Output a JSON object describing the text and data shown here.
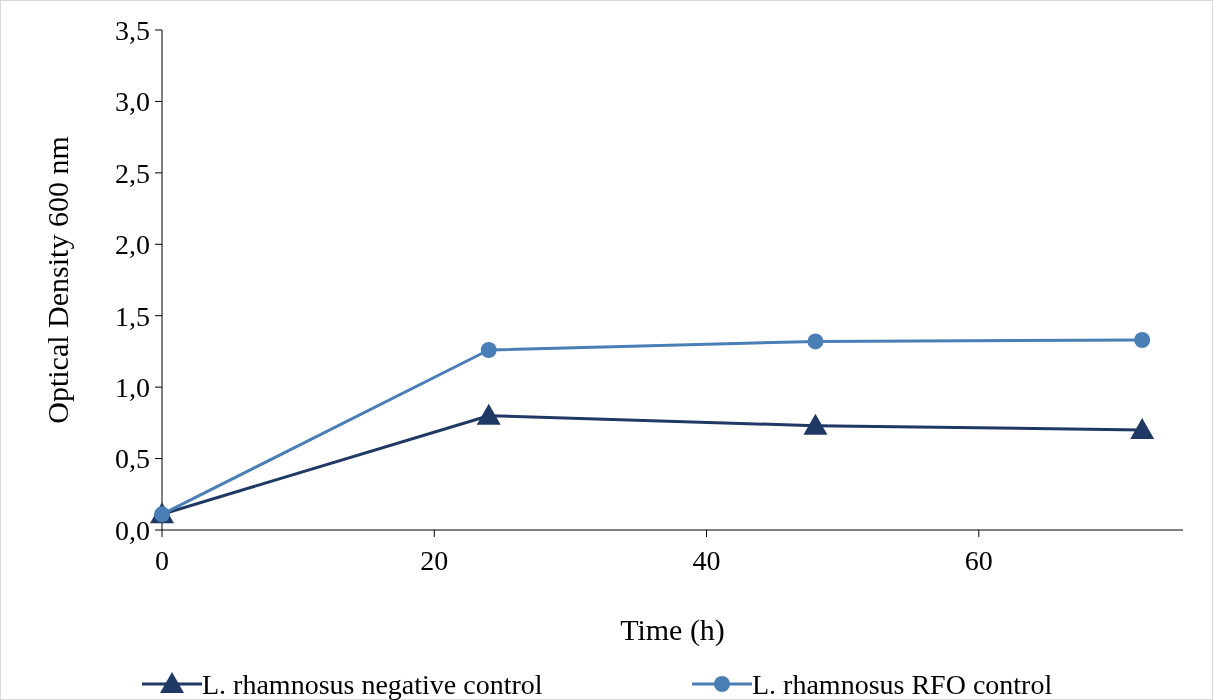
{
  "chart_data": {
    "type": "line",
    "xlabel": "Time (h)",
    "ylabel": "Optical Density 600 nm",
    "x": [
      0,
      24,
      48,
      72
    ],
    "series": [
      {
        "name": "L. rhamnosus negative control",
        "color": "#1f3864",
        "marker": "triangle",
        "values": [
          0.11,
          0.8,
          0.73,
          0.7
        ]
      },
      {
        "name": "L. rhamnosus RFO control",
        "color": "#4a7fb5",
        "marker": "circle",
        "values": [
          0.11,
          1.26,
          1.32,
          1.33
        ]
      }
    ],
    "xlim": [
      0,
      75
    ],
    "xticks": [
      0,
      20,
      40,
      60
    ],
    "ylim": [
      0,
      3.5
    ],
    "yticks": [
      {
        "value": 0,
        "label": "0,0"
      },
      {
        "value": 0.5,
        "label": "0,5"
      },
      {
        "value": 1,
        "label": "1,0"
      },
      {
        "value": 1.5,
        "label": "1,5"
      },
      {
        "value": 2,
        "label": "2,0"
      },
      {
        "value": 2.5,
        "label": "2,5"
      },
      {
        "value": 3,
        "label": "3,0"
      },
      {
        "value": 3.5,
        "label": "3,5"
      }
    ],
    "grid": false,
    "legend": "bottom",
    "line_style": "solid"
  }
}
